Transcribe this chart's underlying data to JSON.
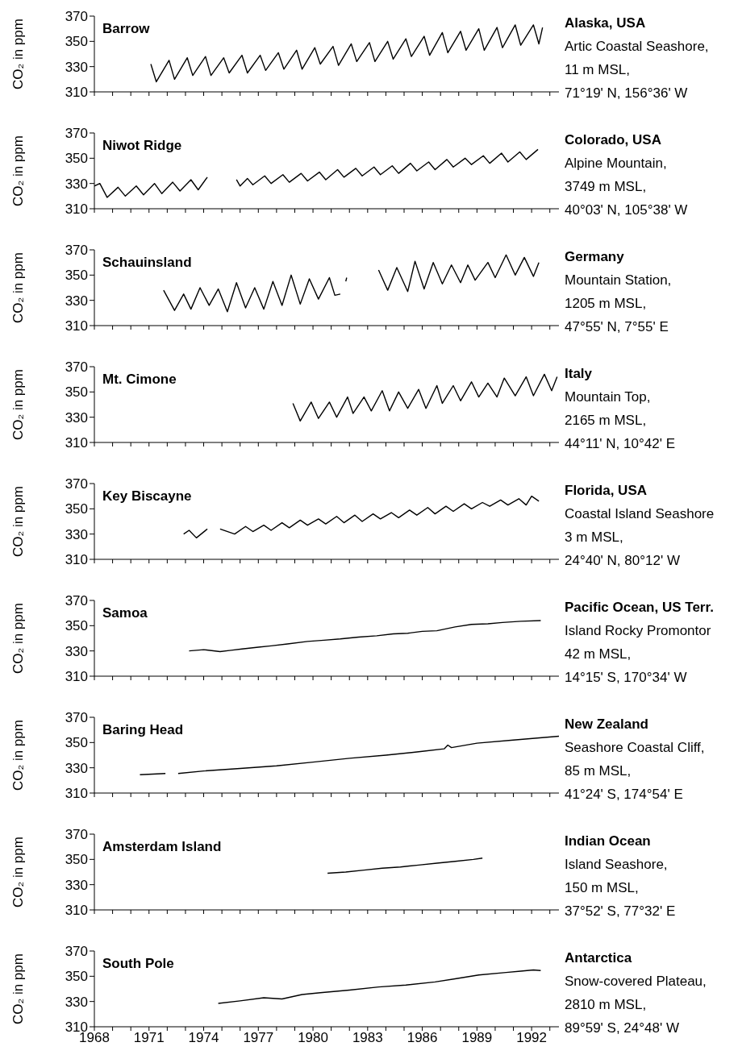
{
  "chart_data": [
    {
      "type": "line",
      "title": "Barrow",
      "subtitle": "Alaska, USA",
      "annotations": [
        "Artic Coastal Seashore,",
        "11 m MSL,",
        "71°19' N, 156°36' W"
      ],
      "ylabel": "CO₂ in ppm",
      "xlim": [
        1968,
        1993.5
      ],
      "ylim": [
        310,
        370
      ],
      "yticks": [
        310,
        330,
        350,
        370
      ],
      "xticks": [
        1968,
        {
          "value": 1969,
          "label": null
        },
        {
          "value": 1970,
          "label": null
        },
        1971,
        {
          "value": 1972,
          "label": null
        },
        {
          "value": 1973,
          "label": null
        },
        1974,
        {
          "value": 1975,
          "label": null
        },
        {
          "value": 1976,
          "label": null
        },
        1977,
        {
          "value": 1978,
          "label": null
        },
        {
          "value": 1979,
          "label": null
        },
        1980,
        {
          "value": 1981,
          "label": null
        },
        {
          "value": 1982,
          "label": null
        },
        1983,
        {
          "value": 1984,
          "label": null
        },
        {
          "value": 1985,
          "label": null
        },
        1986,
        {
          "value": 1987,
          "label": null
        },
        {
          "value": 1988,
          "label": null
        },
        1989,
        {
          "value": 1990,
          "label": null
        },
        {
          "value": 1991,
          "label": null
        },
        1992,
        {
          "value": 1993,
          "label": null
        }
      ],
      "tick_labels": "y",
      "series": [
        {
          "color": "#000000",
          "x": [
            1971.1,
            1971.4,
            1972.1,
            1972.4,
            1973.1,
            1973.4,
            1974.1,
            1974.4,
            1975.1,
            1975.4,
            1976.1,
            1976.4,
            1977.1,
            1977.4,
            1978.1,
            1978.4,
            1979.1,
            1979.4,
            1980.1,
            1980.4,
            1981.1,
            1981.4,
            1982.1,
            1982.4,
            1983.1,
            1983.4,
            1984.1,
            1984.4,
            1985.1,
            1985.4,
            1986.1,
            1986.4,
            1987.1,
            1987.4,
            1988.1,
            1988.4,
            1989.1,
            1989.4,
            1990.1,
            1990.4,
            1991.1,
            1991.4,
            1992.1,
            1992.4,
            1992.6
          ],
          "values": [
            332,
            318,
            335,
            320,
            337,
            323,
            338,
            323,
            337,
            325,
            339,
            325,
            339,
            327,
            341,
            328,
            343,
            328,
            345,
            332,
            346,
            331,
            348,
            334,
            349,
            334,
            350,
            336,
            352,
            338,
            354,
            339,
            357,
            341,
            358,
            343,
            360,
            343,
            361,
            345,
            363,
            347,
            363,
            348,
            361
          ]
        }
      ]
    },
    {
      "type": "line",
      "title": "Niwot Ridge",
      "subtitle": "Colorado, USA",
      "annotations": [
        "Alpine Mountain,",
        "3749 m MSL,",
        "40°03' N, 105°38' W"
      ],
      "ylabel": "CO₂ in ppm",
      "xlim": [
        1968,
        1993.5
      ],
      "ylim": [
        310,
        370
      ],
      "yticks": [
        310,
        330,
        350,
        370
      ],
      "xticks": [
        1968,
        {
          "value": 1969,
          "label": null
        },
        {
          "value": 1970,
          "label": null
        },
        1971,
        {
          "value": 1972,
          "label": null
        },
        {
          "value": 1973,
          "label": null
        },
        1974,
        {
          "value": 1975,
          "label": null
        },
        {
          "value": 1976,
          "label": null
        },
        1977,
        {
          "value": 1978,
          "label": null
        },
        {
          "value": 1979,
          "label": null
        },
        1980,
        {
          "value": 1981,
          "label": null
        },
        {
          "value": 1982,
          "label": null
        },
        1983,
        {
          "value": 1984,
          "label": null
        },
        {
          "value": 1985,
          "label": null
        },
        1986,
        {
          "value": 1987,
          "label": null
        },
        {
          "value": 1988,
          "label": null
        },
        1989,
        {
          "value": 1990,
          "label": null
        },
        {
          "value": 1991,
          "label": null
        },
        1992,
        {
          "value": 1993,
          "label": null
        }
      ],
      "tick_labels": "y",
      "series": [
        {
          "color": "#000000",
          "x": [
            1968.0,
            1968.3,
            1968.7,
            1969.3,
            1969.7,
            1970.3,
            1970.7,
            1971.3,
            1971.7,
            1972.3,
            1972.7,
            1973.3,
            1973.7,
            1974.2,
            1975.0,
            1975.8,
            1976.0,
            1976.4,
            1976.7,
            1977.35,
            1977.7,
            1978.35,
            1978.7,
            1979.35,
            1979.7,
            1980.35,
            1980.7,
            1981.35,
            1981.7,
            1982.35,
            1982.7,
            1983.35,
            1983.7,
            1984.35,
            1984.7,
            1985.35,
            1985.7,
            1986.35,
            1986.7,
            1987.35,
            1987.7,
            1988.35,
            1988.7,
            1989.35,
            1989.7,
            1990.35,
            1990.7,
            1991.35,
            1991.7,
            1992.35
          ],
          "values": [
            328,
            330,
            319,
            327,
            320,
            328,
            321,
            330,
            322,
            331,
            324,
            333,
            325,
            335,
            null,
            333,
            328,
            334,
            329,
            336,
            330,
            337,
            331,
            338,
            332,
            339,
            333,
            341,
            335,
            342,
            336,
            343,
            337,
            344,
            338,
            346,
            340,
            347,
            341,
            349,
            343,
            350,
            345,
            352,
            346,
            354,
            347,
            355,
            349,
            357
          ]
        }
      ]
    },
    {
      "type": "line",
      "title": "Schauinsland",
      "subtitle": "Germany",
      "annotations": [
        "Mountain Station,",
        "1205 m MSL,",
        "47°55' N, 7°55' E"
      ],
      "ylabel": "CO₂ in ppm",
      "xlim": [
        1968,
        1993.5
      ],
      "ylim": [
        310,
        370
      ],
      "yticks": [
        310,
        330,
        350,
        370
      ],
      "xticks": [
        1968,
        {
          "value": 1969,
          "label": null
        },
        {
          "value": 1970,
          "label": null
        },
        1971,
        {
          "value": 1972,
          "label": null
        },
        {
          "value": 1973,
          "label": null
        },
        1974,
        {
          "value": 1975,
          "label": null
        },
        {
          "value": 1976,
          "label": null
        },
        1977,
        {
          "value": 1978,
          "label": null
        },
        {
          "value": 1979,
          "label": null
        },
        1980,
        {
          "value": 1981,
          "label": null
        },
        {
          "value": 1982,
          "label": null
        },
        1983,
        {
          "value": 1984,
          "label": null
        },
        {
          "value": 1985,
          "label": null
        },
        1986,
        {
          "value": 1987,
          "label": null
        },
        {
          "value": 1988,
          "label": null
        },
        1989,
        {
          "value": 1990,
          "label": null
        },
        {
          "value": 1991,
          "label": null
        },
        1992,
        {
          "value": 1993,
          "label": null
        }
      ],
      "tick_labels": "y",
      "series": [
        {
          "color": "#000000",
          "x": [
            1971.8,
            1972.4,
            1972.9,
            1973.3,
            1973.8,
            1974.3,
            1974.8,
            1975.3,
            1975.8,
            1976.3,
            1976.8,
            1977.3,
            1977.8,
            1978.3,
            1978.8,
            1979.3,
            1979.8,
            1980.3,
            1980.9,
            1981.2,
            1981.5,
            1981.65,
            1981.8,
            1981.85,
            1982.5,
            1983.6,
            1984.1,
            1984.6,
            1985.2,
            1985.6,
            1986.1,
            1986.6,
            1987.1,
            1987.6,
            1988.1,
            1988.5,
            1988.9,
            1989.6,
            1990.0,
            1990.6,
            1991.1,
            1991.6,
            1992.1,
            1992.4
          ],
          "values": [
            338,
            322,
            335,
            323,
            340,
            326,
            339,
            321,
            344,
            324,
            340,
            323,
            345,
            326,
            350,
            327,
            347,
            331,
            348,
            334,
            335,
            null,
            345,
            348,
            null,
            354,
            338,
            356,
            337,
            361,
            339,
            360,
            343,
            358,
            344,
            358,
            346,
            360,
            348,
            366,
            350,
            364,
            349,
            360
          ]
        }
      ]
    },
    {
      "type": "line",
      "title": "Mt. Cimone",
      "subtitle": "Italy",
      "annotations": [
        "Mountain Top,",
        "2165 m MSL,",
        "44°11' N, 10°42' E"
      ],
      "ylabel": "CO₂ in ppm",
      "xlim": [
        1968,
        1993.5
      ],
      "ylim": [
        310,
        370
      ],
      "yticks": [
        310,
        330,
        350,
        370
      ],
      "xticks": [
        1968,
        {
          "value": 1969,
          "label": null
        },
        {
          "value": 1970,
          "label": null
        },
        1971,
        {
          "value": 1972,
          "label": null
        },
        {
          "value": 1973,
          "label": null
        },
        1974,
        {
          "value": 1975,
          "label": null
        },
        {
          "value": 1976,
          "label": null
        },
        1977,
        {
          "value": 1978,
          "label": null
        },
        {
          "value": 1979,
          "label": null
        },
        1980,
        {
          "value": 1981,
          "label": null
        },
        {
          "value": 1982,
          "label": null
        },
        1983,
        {
          "value": 1984,
          "label": null
        },
        {
          "value": 1985,
          "label": null
        },
        1986,
        {
          "value": 1987,
          "label": null
        },
        {
          "value": 1988,
          "label": null
        },
        1989,
        {
          "value": 1990,
          "label": null
        },
        {
          "value": 1991,
          "label": null
        },
        1992,
        {
          "value": 1993,
          "label": null
        }
      ],
      "tick_labels": "y",
      "series": [
        {
          "color": "#000000",
          "x": [
            1978.9,
            1979.3,
            1979.9,
            1980.3,
            1980.9,
            1981.3,
            1981.9,
            1982.2,
            1982.8,
            1983.2,
            1983.8,
            1984.2,
            1984.7,
            1985.2,
            1985.8,
            1986.2,
            1986.8,
            1987.1,
            1987.7,
            1988.1,
            1988.7,
            1989.1,
            1989.6,
            1990.1,
            1990.5,
            1991.1,
            1991.7,
            1992.1,
            1992.7,
            1993.1,
            1993.4
          ],
          "values": [
            341,
            327,
            342,
            329,
            342,
            330,
            346,
            333,
            346,
            335,
            351,
            335,
            350,
            337,
            352,
            337,
            355,
            341,
            355,
            343,
            358,
            346,
            357,
            346,
            361,
            347,
            362,
            347,
            364,
            351,
            362
          ]
        }
      ]
    },
    {
      "type": "line",
      "title": "Key Biscayne",
      "subtitle": "Florida, USA",
      "annotations": [
        "Coastal Island Seashore",
        "3 m MSL,",
        "24°40' N, 80°12' W"
      ],
      "ylabel": "CO₂ in ppm",
      "xlim": [
        1968,
        1993.5
      ],
      "ylim": [
        310,
        370
      ],
      "yticks": [
        310,
        330,
        350,
        370
      ],
      "xticks": [
        1968,
        {
          "value": 1969,
          "label": null
        },
        {
          "value": 1970,
          "label": null
        },
        1971,
        {
          "value": 1972,
          "label": null
        },
        {
          "value": 1973,
          "label": null
        },
        1974,
        {
          "value": 1975,
          "label": null
        },
        {
          "value": 1976,
          "label": null
        },
        1977,
        {
          "value": 1978,
          "label": null
        },
        {
          "value": 1979,
          "label": null
        },
        1980,
        {
          "value": 1981,
          "label": null
        },
        {
          "value": 1982,
          "label": null
        },
        1983,
        {
          "value": 1984,
          "label": null
        },
        {
          "value": 1985,
          "label": null
        },
        1986,
        {
          "value": 1987,
          "label": null
        },
        {
          "value": 1988,
          "label": null
        },
        1989,
        {
          "value": 1990,
          "label": null
        },
        {
          "value": 1991,
          "label": null
        },
        1992,
        {
          "value": 1993,
          "label": null
        }
      ],
      "tick_labels": "y",
      "series": [
        {
          "color": "#000000",
          "x": [
            1972.9,
            1973.2,
            1973.6,
            1974.2,
            1974.5,
            1974.9,
            1975.7,
            1976.3,
            1976.7,
            1977.3,
            1977.7,
            1978.3,
            1978.7,
            1979.3,
            1979.7,
            1980.3,
            1980.7,
            1981.3,
            1981.7,
            1982.3,
            1982.7,
            1983.3,
            1983.7,
            1984.3,
            1984.7,
            1985.3,
            1985.7,
            1986.3,
            1986.7,
            1987.3,
            1987.7,
            1988.3,
            1988.7,
            1989.3,
            1989.7,
            1990.3,
            1990.7,
            1991.3,
            1991.7,
            1992.0,
            1992.4
          ],
          "values": [
            330,
            333,
            327,
            334,
            null,
            334,
            330,
            336,
            332,
            337,
            333,
            339,
            335,
            341,
            337,
            342,
            338,
            344,
            339,
            345,
            340,
            346,
            342,
            347,
            343,
            349,
            345,
            351,
            346,
            352,
            348,
            354,
            350,
            355,
            352,
            357,
            353,
            358,
            353,
            360,
            356
          ]
        }
      ]
    },
    {
      "type": "line",
      "title": "Samoa",
      "subtitle": "Pacific Ocean, US Terr.",
      "annotations": [
        "Island Rocky Promontor",
        "42 m MSL,",
        "14°15' S, 170°34' W"
      ],
      "ylabel": "CO₂ in ppm",
      "xlim": [
        1968,
        1993.5
      ],
      "ylim": [
        310,
        370
      ],
      "yticks": [
        310,
        330,
        350,
        370
      ],
      "xticks": [
        1968,
        {
          "value": 1969,
          "label": null
        },
        {
          "value": 1970,
          "label": null
        },
        1971,
        {
          "value": 1972,
          "label": null
        },
        {
          "value": 1973,
          "label": null
        },
        1974,
        {
          "value": 1975,
          "label": null
        },
        {
          "value": 1976,
          "label": null
        },
        1977,
        {
          "value": 1978,
          "label": null
        },
        {
          "value": 1979,
          "label": null
        },
        1980,
        {
          "value": 1981,
          "label": null
        },
        {
          "value": 1982,
          "label": null
        },
        1983,
        {
          "value": 1984,
          "label": null
        },
        {
          "value": 1985,
          "label": null
        },
        1986,
        {
          "value": 1987,
          "label": null
        },
        {
          "value": 1988,
          "label": null
        },
        1989,
        {
          "value": 1990,
          "label": null
        },
        {
          "value": 1991,
          "label": null
        },
        1992,
        {
          "value": 1993,
          "label": null
        }
      ],
      "tick_labels": "y",
      "series": [
        {
          "color": "#000000",
          "x": [
            1973.2,
            1974.0,
            1974.9,
            1975.5,
            1976.1,
            1977.0,
            1977.7,
            1978.6,
            1979.7,
            1980.6,
            1981.5,
            1982.5,
            1983.5,
            1984.4,
            1985.2,
            1986.0,
            1986.8,
            1987.8,
            1988.7,
            1989.6,
            1990.4,
            1991.4,
            1992.5
          ],
          "values": [
            330,
            331,
            329.5,
            330.5,
            331.5,
            333,
            334,
            335.5,
            337.5,
            338.5,
            339.5,
            341,
            342,
            343.5,
            344,
            345.5,
            346,
            349,
            351,
            351.5,
            352.5,
            353.5,
            354
          ]
        }
      ]
    },
    {
      "type": "line",
      "title": "Baring Head",
      "subtitle": "New Zealand",
      "annotations": [
        "Seashore Coastal Cliff,",
        "85 m MSL,",
        "41°24' S, 174°54' E"
      ],
      "ylabel": "CO₂ in ppm",
      "xlim": [
        1968,
        1993.5
      ],
      "ylim": [
        310,
        370
      ],
      "yticks": [
        310,
        330,
        350,
        370
      ],
      "xticks": [
        1968,
        {
          "value": 1969,
          "label": null
        },
        {
          "value": 1970,
          "label": null
        },
        1971,
        {
          "value": 1972,
          "label": null
        },
        {
          "value": 1973,
          "label": null
        },
        1974,
        {
          "value": 1975,
          "label": null
        },
        {
          "value": 1976,
          "label": null
        },
        1977,
        {
          "value": 1978,
          "label": null
        },
        {
          "value": 1979,
          "label": null
        },
        1980,
        {
          "value": 1981,
          "label": null
        },
        {
          "value": 1982,
          "label": null
        },
        1983,
        {
          "value": 1984,
          "label": null
        },
        {
          "value": 1985,
          "label": null
        },
        1986,
        {
          "value": 1987,
          "label": null
        },
        {
          "value": 1988,
          "label": null
        },
        1989,
        {
          "value": 1990,
          "label": null
        },
        {
          "value": 1991,
          "label": null
        },
        1992,
        {
          "value": 1993,
          "label": null
        }
      ],
      "tick_labels": "y",
      "series": [
        {
          "color": "#000000",
          "x": [
            1970.5,
            1971.2,
            1971.9,
            1972.2,
            1972.6,
            1974.0,
            1976.0,
            1978.0,
            1980.0,
            1982.0,
            1984.0,
            1986.0,
            1987.2,
            1987.4,
            1987.6,
            1989.0,
            1991.0,
            1993.5
          ],
          "values": [
            324.5,
            325,
            325.5,
            null,
            325.5,
            327.5,
            329.5,
            331.5,
            334.5,
            337.5,
            340,
            343,
            345,
            348,
            346,
            349.5,
            352,
            355
          ]
        }
      ]
    },
    {
      "type": "line",
      "title": "Amsterdam Island",
      "subtitle": "Indian Ocean",
      "annotations": [
        "Island Seashore,",
        "150 m MSL,",
        "37°52' S, 77°32' E"
      ],
      "ylabel": "CO₂ in ppm",
      "xlim": [
        1968,
        1993.5
      ],
      "ylim": [
        310,
        370
      ],
      "yticks": [
        310,
        330,
        350,
        370
      ],
      "xticks": [
        1968,
        {
          "value": 1969,
          "label": null
        },
        {
          "value": 1970,
          "label": null
        },
        1971,
        {
          "value": 1972,
          "label": null
        },
        {
          "value": 1973,
          "label": null
        },
        1974,
        {
          "value": 1975,
          "label": null
        },
        {
          "value": 1976,
          "label": null
        },
        1977,
        {
          "value": 1978,
          "label": null
        },
        {
          "value": 1979,
          "label": null
        },
        1980,
        {
          "value": 1981,
          "label": null
        },
        {
          "value": 1982,
          "label": null
        },
        1983,
        {
          "value": 1984,
          "label": null
        },
        {
          "value": 1985,
          "label": null
        },
        1986,
        {
          "value": 1987,
          "label": null
        },
        {
          "value": 1988,
          "label": null
        },
        1989,
        {
          "value": 1990,
          "label": null
        },
        {
          "value": 1991,
          "label": null
        },
        1992,
        {
          "value": 1993,
          "label": null
        }
      ],
      "tick_labels": "y",
      "series": [
        {
          "color": "#000000",
          "x": [
            1980.8,
            1981.8,
            1982.8,
            1983.8,
            1984.8,
            1985.8,
            1986.8,
            1987.8,
            1988.8,
            1989.3
          ],
          "values": [
            339,
            340,
            341.5,
            343,
            344,
            345.5,
            347,
            348.5,
            350,
            351
          ]
        }
      ]
    },
    {
      "type": "line",
      "title": "South Pole",
      "subtitle": "Antarctica",
      "annotations": [
        "Snow-covered Plateau,",
        "2810 m MSL,",
        "89°59' S, 24°48' W"
      ],
      "ylabel": "CO₂ in ppm",
      "xlim": [
        1968,
        1993.5
      ],
      "ylim": [
        310,
        370
      ],
      "yticks": [
        310,
        330,
        350,
        370
      ],
      "xticks": [
        1968,
        {
          "value": 1969,
          "label": null
        },
        {
          "value": 1970,
          "label": null
        },
        1971,
        {
          "value": 1972,
          "label": null
        },
        {
          "value": 1973,
          "label": null
        },
        1974,
        {
          "value": 1975,
          "label": null
        },
        {
          "value": 1976,
          "label": null
        },
        1977,
        {
          "value": 1978,
          "label": null
        },
        {
          "value": 1979,
          "label": null
        },
        1980,
        {
          "value": 1981,
          "label": null
        },
        {
          "value": 1982,
          "label": null
        },
        1983,
        {
          "value": 1984,
          "label": null
        },
        {
          "value": 1985,
          "label": null
        },
        1986,
        {
          "value": 1987,
          "label": null
        },
        {
          "value": 1988,
          "label": null
        },
        1989,
        {
          "value": 1990,
          "label": null
        },
        {
          "value": 1991,
          "label": null
        },
        1992,
        {
          "value": 1993,
          "label": null
        }
      ],
      "series": [
        {
          "color": "#000000",
          "x": [
            1974.8,
            1976.0,
            1977.3,
            1978.3,
            1979.4,
            1980.4,
            1982.0,
            1983.6,
            1985.1,
            1986.7,
            1987.8,
            1989.1,
            1990.6,
            1991.4,
            1992.1,
            1992.5
          ],
          "values": [
            328.5,
            330.5,
            333,
            332,
            335.5,
            337,
            339,
            341.5,
            343,
            345.5,
            348,
            351,
            353,
            354,
            355,
            354.5
          ]
        }
      ]
    }
  ]
}
